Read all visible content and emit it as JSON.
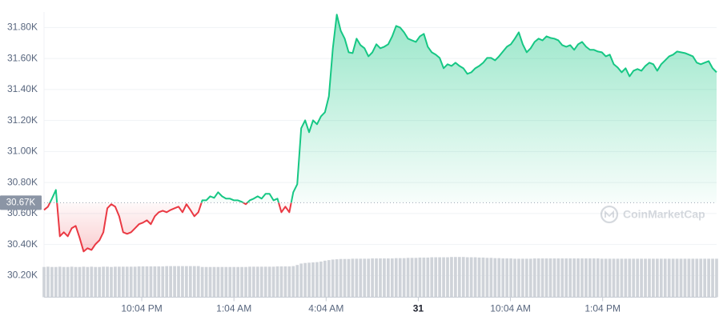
{
  "chart_data": {
    "type": "line",
    "up_color": "#16c784",
    "down_color": "#ea3943",
    "volume_color": "#cfd3d9",
    "grid": true,
    "watermark": "CoinMarketCap",
    "baseline": {
      "value": 30.67,
      "label": "30.67K"
    },
    "ylim": [
      30.06,
      31.9
    ],
    "yticks": [
      {
        "value": 30.2,
        "label": "30.20K"
      },
      {
        "value": 30.4,
        "label": "30.40K"
      },
      {
        "value": 30.6,
        "label": "30.60K"
      },
      {
        "value": 30.8,
        "label": "30.80K"
      },
      {
        "value": 31.0,
        "label": "31.00K"
      },
      {
        "value": 31.2,
        "label": "31.20K"
      },
      {
        "value": 31.4,
        "label": "31.40K"
      },
      {
        "value": 31.6,
        "label": "31.60K"
      },
      {
        "value": 31.8,
        "label": "31.80K"
      }
    ],
    "xlim": [
      0,
      170
    ],
    "xticks": [
      {
        "value": 24.7,
        "label": "10:04 PM"
      },
      {
        "value": 48,
        "label": "1:04 AM"
      },
      {
        "value": 71.3,
        "label": "4:04 AM"
      },
      {
        "value": 94.6,
        "label": "31"
      },
      {
        "value": 117.9,
        "label": "10:04 AM"
      },
      {
        "value": 141.2,
        "label": "1:04 PM"
      }
    ],
    "y2lim": [
      0,
      100
    ],
    "series": [
      {
        "values": [
          30.623,
          30.644,
          30.696,
          30.752,
          30.453,
          30.479,
          30.453,
          30.505,
          30.52,
          30.443,
          30.355,
          30.376,
          30.365,
          30.402,
          30.427,
          30.479,
          30.634,
          30.66,
          30.644,
          30.582,
          30.479,
          30.469,
          30.479,
          30.505,
          30.531,
          30.541,
          30.556,
          30.531,
          30.582,
          30.608,
          30.618,
          30.608,
          30.623,
          30.634,
          30.644,
          30.608,
          30.66,
          30.623,
          30.582,
          30.608,
          30.685,
          30.685,
          30.711,
          30.701,
          30.737,
          30.711,
          30.696,
          30.696,
          30.685,
          30.685,
          30.675,
          30.66,
          30.685,
          30.696,
          30.711,
          30.696,
          30.727,
          30.727,
          30.685,
          30.696,
          30.608,
          30.644,
          30.608,
          30.737,
          30.789,
          31.15,
          31.201,
          31.124,
          31.201,
          31.176,
          31.227,
          31.253,
          31.356,
          31.666,
          31.883,
          31.779,
          31.728,
          31.64,
          31.635,
          31.728,
          31.686,
          31.666,
          31.614,
          31.64,
          31.692,
          31.666,
          31.676,
          31.692,
          31.743,
          31.81,
          31.8,
          31.769,
          31.728,
          31.717,
          31.707,
          31.743,
          31.759,
          31.676,
          31.64,
          31.625,
          31.604,
          31.537,
          31.563,
          31.552,
          31.573,
          31.552,
          31.537,
          31.501,
          31.511,
          31.537,
          31.552,
          31.573,
          31.604,
          31.604,
          31.588,
          31.614,
          31.645,
          31.676,
          31.692,
          31.728,
          31.769,
          31.692,
          31.64,
          31.666,
          31.707,
          31.728,
          31.717,
          31.743,
          31.733,
          31.728,
          31.717,
          31.686,
          31.676,
          31.686,
          31.656,
          31.692,
          31.707,
          31.676,
          31.656,
          31.656,
          31.645,
          31.64,
          31.614,
          31.625,
          31.563,
          31.542,
          31.511,
          31.537,
          31.485,
          31.521,
          31.532,
          31.521,
          31.552,
          31.573,
          31.563,
          31.521,
          31.563,
          31.588,
          31.614,
          31.625,
          31.645,
          31.64,
          31.635,
          31.625,
          31.614,
          31.573,
          31.563,
          31.573,
          31.583,
          31.537,
          31.511
        ],
        "volume": [
          10.6,
          10.7,
          10.6,
          10.6,
          10.7,
          10.6,
          10.6,
          10.7,
          10.6,
          10.6,
          10.7,
          10.6,
          10.7,
          10.6,
          10.6,
          10.7,
          10.7,
          10.6,
          10.7,
          10.7,
          10.7,
          10.7,
          10.7,
          10.7,
          10.8,
          10.8,
          10.8,
          10.8,
          10.8,
          10.8,
          10.8,
          10.9,
          10.9,
          10.9,
          10.9,
          10.9,
          10.9,
          10.9,
          10.9,
          10.9,
          10.6,
          10.6,
          10.6,
          10.6,
          10.6,
          10.6,
          10.6,
          10.6,
          10.6,
          10.6,
          10.6,
          10.6,
          10.7,
          10.7,
          10.7,
          10.7,
          10.7,
          10.7,
          10.7,
          10.8,
          10.8,
          10.8,
          10.8,
          10.9,
          11.3,
          11.8,
          12.0,
          12.1,
          12.2,
          12.3,
          12.5,
          12.8,
          13.0,
          13.2,
          13.3,
          13.4,
          13.4,
          13.4,
          13.5,
          13.5,
          13.5,
          13.5,
          13.5,
          13.6,
          13.6,
          13.6,
          13.6,
          13.6,
          13.6,
          13.7,
          13.7,
          13.7,
          13.8,
          13.8,
          13.8,
          13.9,
          13.9,
          13.9,
          14.0,
          14.0,
          14.0,
          14.0,
          14.0,
          14.1,
          14.1,
          14.1,
          14.1,
          14.0,
          14.0,
          14.0,
          13.9,
          13.9,
          13.8,
          13.8,
          13.7,
          13.7,
          13.6,
          13.6,
          13.6,
          13.5,
          13.5,
          13.5,
          13.5,
          13.5,
          13.6,
          13.6,
          13.6,
          13.6,
          13.6,
          13.6,
          13.6,
          13.6,
          13.6,
          13.6,
          13.6,
          13.6,
          13.6,
          13.6,
          13.6,
          13.6,
          13.6,
          13.5,
          13.5,
          13.5,
          13.5,
          13.5,
          13.5,
          13.5,
          13.5,
          13.5,
          13.5,
          13.5,
          13.5,
          13.5,
          13.5,
          13.5,
          13.5,
          13.5,
          13.5,
          13.5,
          13.5,
          13.5,
          13.5,
          13.5,
          13.5,
          13.5,
          13.5,
          13.5,
          13.5,
          13.5,
          13.5
        ]
      }
    ]
  }
}
